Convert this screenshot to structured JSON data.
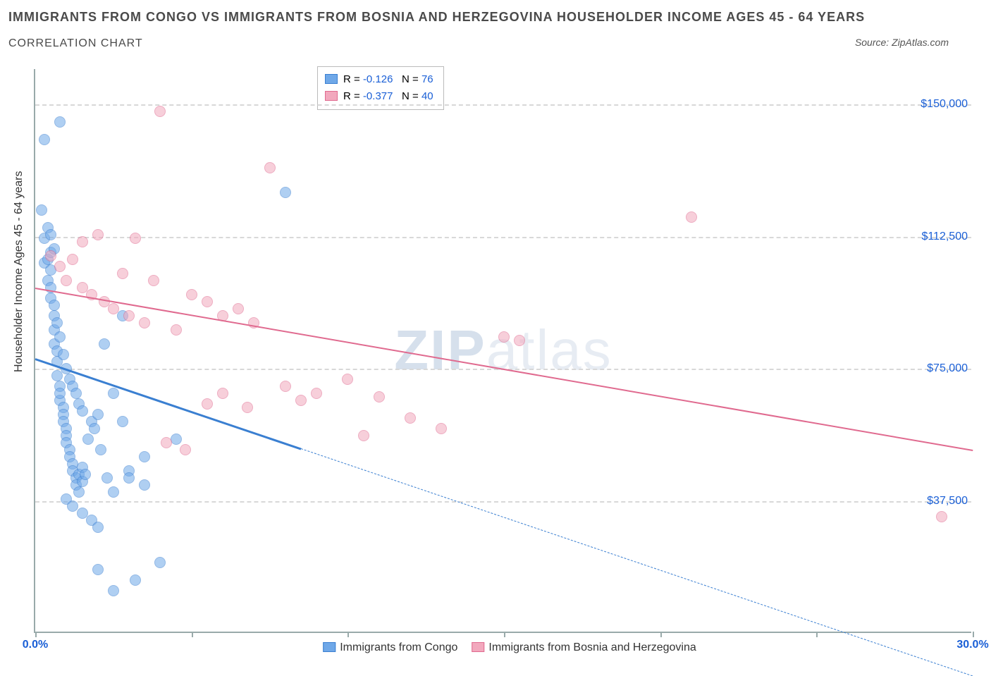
{
  "title_line1": "IMMIGRANTS FROM CONGO VS IMMIGRANTS FROM BOSNIA AND HERZEGOVINA HOUSEHOLDER INCOME AGES 45 - 64 YEARS",
  "title_line2": "CORRELATION CHART",
  "source_label": "Source:",
  "source_name": "ZipAtlas.com",
  "ylabel": "Householder Income Ages 45 - 64 years",
  "watermark_bold": "ZIP",
  "watermark_light": "atlas",
  "chart": {
    "type": "scatter",
    "background_color": "#ffffff",
    "grid_color": "#d8d8d8",
    "axis_color": "#99aaaa",
    "xlim": [
      0,
      30
    ],
    "ylim": [
      0,
      160000
    ],
    "xticks": [
      0,
      5,
      10,
      15,
      20,
      25,
      30
    ],
    "xtick_labels_shown": {
      "0": "0.0%",
      "30": "30.0%"
    },
    "xtick_label_color": "#1a5fd6",
    "yticks": [
      37500,
      75000,
      112500,
      150000
    ],
    "ytick_labels": [
      "$37,500",
      "$75,000",
      "$112,500",
      "$150,000"
    ],
    "ytick_label_color": "#1a5fd6",
    "marker_radius": 8,
    "marker_opacity": 0.55,
    "marker_border_width": 1.2,
    "series": [
      {
        "name": "Immigrants from Congo",
        "fill_color": "#6fa8e8",
        "border_color": "#3a7fd1",
        "r_value": "-0.126",
        "n_value": "76",
        "trend": {
          "y_at_x0": 78000,
          "y_at_x30": -12000,
          "solid_until_x": 8.5,
          "line_width": 3
        },
        "points": [
          [
            0.2,
            120000
          ],
          [
            0.3,
            105000
          ],
          [
            0.3,
            112000
          ],
          [
            0.4,
            106000
          ],
          [
            0.4,
            100000
          ],
          [
            0.5,
            95000
          ],
          [
            0.5,
            98000
          ],
          [
            0.5,
            103000
          ],
          [
            0.6,
            90000
          ],
          [
            0.6,
            86000
          ],
          [
            0.6,
            82000
          ],
          [
            0.7,
            80000
          ],
          [
            0.7,
            77000
          ],
          [
            0.7,
            73000
          ],
          [
            0.8,
            70000
          ],
          [
            0.8,
            66000
          ],
          [
            0.8,
            68000
          ],
          [
            0.9,
            64000
          ],
          [
            0.9,
            62000
          ],
          [
            0.9,
            60000
          ],
          [
            1.0,
            58000
          ],
          [
            1.0,
            56000
          ],
          [
            1.0,
            54000
          ],
          [
            1.1,
            52000
          ],
          [
            1.1,
            50000
          ],
          [
            1.2,
            48000
          ],
          [
            1.2,
            46000
          ],
          [
            1.3,
            44000
          ],
          [
            1.3,
            42000
          ],
          [
            1.4,
            40000
          ],
          [
            1.4,
            45000
          ],
          [
            1.5,
            43000
          ],
          [
            1.5,
            47000
          ],
          [
            1.6,
            45000
          ],
          [
            0.3,
            140000
          ],
          [
            0.4,
            115000
          ],
          [
            0.5,
            108000
          ],
          [
            0.6,
            93000
          ],
          [
            0.7,
            88000
          ],
          [
            0.8,
            84000
          ],
          [
            0.9,
            79000
          ],
          [
            1.0,
            75000
          ],
          [
            1.1,
            72000
          ],
          [
            1.2,
            70000
          ],
          [
            1.3,
            68000
          ],
          [
            1.4,
            65000
          ],
          [
            1.5,
            63000
          ],
          [
            0.5,
            113000
          ],
          [
            0.6,
            109000
          ],
          [
            1.8,
            60000
          ],
          [
            2.0,
            62000
          ],
          [
            2.2,
            82000
          ],
          [
            2.5,
            68000
          ],
          [
            2.8,
            90000
          ],
          [
            1.0,
            38000
          ],
          [
            1.2,
            36000
          ],
          [
            1.5,
            34000
          ],
          [
            1.8,
            32000
          ],
          [
            2.0,
            30000
          ],
          [
            2.3,
            44000
          ],
          [
            2.5,
            40000
          ],
          [
            3.0,
            46000
          ],
          [
            3.5,
            42000
          ],
          [
            0.8,
            145000
          ],
          [
            2.0,
            18000
          ],
          [
            2.5,
            12000
          ],
          [
            3.0,
            44000
          ],
          [
            3.2,
            15000
          ],
          [
            3.5,
            50000
          ],
          [
            4.0,
            20000
          ],
          [
            4.5,
            55000
          ],
          [
            8.0,
            125000
          ],
          [
            2.8,
            60000
          ],
          [
            1.7,
            55000
          ],
          [
            1.9,
            58000
          ],
          [
            2.1,
            52000
          ]
        ]
      },
      {
        "name": "Immigrants from Bosnia and Herzegovina",
        "fill_color": "#f2a8bd",
        "border_color": "#e06a8f",
        "r_value": "-0.377",
        "n_value": "40",
        "trend": {
          "y_at_x0": 98000,
          "y_at_x30": 52000,
          "solid_until_x": 30,
          "line_width": 2.5
        },
        "points": [
          [
            0.5,
            107000
          ],
          [
            0.8,
            104000
          ],
          [
            1.0,
            100000
          ],
          [
            1.2,
            106000
          ],
          [
            1.5,
            98000
          ],
          [
            1.8,
            96000
          ],
          [
            2.0,
            113000
          ],
          [
            2.2,
            94000
          ],
          [
            2.5,
            92000
          ],
          [
            2.8,
            102000
          ],
          [
            3.0,
            90000
          ],
          [
            3.2,
            112000
          ],
          [
            3.5,
            88000
          ],
          [
            3.8,
            100000
          ],
          [
            4.0,
            148000
          ],
          [
            4.5,
            86000
          ],
          [
            5.0,
            96000
          ],
          [
            5.5,
            94000
          ],
          [
            6.0,
            90000
          ],
          [
            6.5,
            92000
          ],
          [
            4.8,
            52000
          ],
          [
            5.5,
            65000
          ],
          [
            6.0,
            68000
          ],
          [
            7.0,
            88000
          ],
          [
            7.5,
            132000
          ],
          [
            8.0,
            70000
          ],
          [
            8.5,
            66000
          ],
          [
            9.0,
            68000
          ],
          [
            10.0,
            72000
          ],
          [
            10.5,
            56000
          ],
          [
            11.0,
            67000
          ],
          [
            12.0,
            61000
          ],
          [
            13.0,
            58000
          ],
          [
            15.0,
            84000
          ],
          [
            15.5,
            83000
          ],
          [
            21.0,
            118000
          ],
          [
            29.0,
            33000
          ],
          [
            4.2,
            54000
          ],
          [
            6.8,
            64000
          ],
          [
            1.5,
            111000
          ]
        ]
      }
    ],
    "legend_rn": {
      "r_label": "R =",
      "n_label": "N ="
    }
  }
}
